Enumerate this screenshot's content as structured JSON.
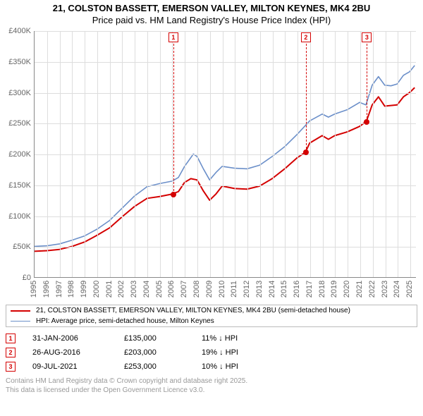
{
  "title": {
    "line1": "21, COLSTON BASSETT, EMERSON VALLEY, MILTON KEYNES, MK4 2BU",
    "line2": "Price paid vs. HM Land Registry's House Price Index (HPI)",
    "fontsize": 13
  },
  "chart": {
    "type": "line",
    "background_color": "#ffffff",
    "grid_color": "#dddddd",
    "axis_color": "#888888",
    "tick_label_color": "#666666",
    "tick_fontsize": 11,
    "xlim": [
      1995,
      2025.5
    ],
    "ylim": [
      0,
      400000
    ],
    "ytick_step": 50000,
    "yticks": [
      {
        "v": 0,
        "label": "£0"
      },
      {
        "v": 50000,
        "label": "£50K"
      },
      {
        "v": 100000,
        "label": "£100K"
      },
      {
        "v": 150000,
        "label": "£150K"
      },
      {
        "v": 200000,
        "label": "£200K"
      },
      {
        "v": 250000,
        "label": "£250K"
      },
      {
        "v": 300000,
        "label": "£300K"
      },
      {
        "v": 350000,
        "label": "£350K"
      },
      {
        "v": 400000,
        "label": "£400K"
      }
    ],
    "xticks": [
      1995,
      1996,
      1997,
      1998,
      1999,
      2000,
      2001,
      2002,
      2003,
      2004,
      2005,
      2006,
      2007,
      2008,
      2009,
      2010,
      2011,
      2012,
      2013,
      2014,
      2015,
      2016,
      2017,
      2018,
      2019,
      2020,
      2021,
      2022,
      2023,
      2024,
      2025
    ],
    "series": [
      {
        "name": "price_paid",
        "label": "21, COLSTON BASSETT, EMERSON VALLEY, MILTON KEYNES, MK4 2BU (semi-detached house)",
        "color": "#d40000",
        "line_width": 2,
        "points": [
          [
            1995,
            42000
          ],
          [
            1996,
            43000
          ],
          [
            1997,
            45000
          ],
          [
            1998,
            50000
          ],
          [
            1999,
            57000
          ],
          [
            2000,
            68000
          ],
          [
            2001,
            80000
          ],
          [
            2002,
            98000
          ],
          [
            2003,
            115000
          ],
          [
            2004,
            128000
          ],
          [
            2005,
            131000
          ],
          [
            2006,
            135000
          ],
          [
            2006.5,
            139000
          ],
          [
            2007,
            154000
          ],
          [
            2007.5,
            160000
          ],
          [
            2008,
            158000
          ],
          [
            2008.5,
            140000
          ],
          [
            2009,
            125000
          ],
          [
            2009.5,
            135000
          ],
          [
            2010,
            148000
          ],
          [
            2011,
            144000
          ],
          [
            2012,
            143000
          ],
          [
            2013,
            148000
          ],
          [
            2014,
            160000
          ],
          [
            2015,
            176000
          ],
          [
            2016,
            194000
          ],
          [
            2016.66,
            203000
          ],
          [
            2017,
            218000
          ],
          [
            2018,
            230000
          ],
          [
            2018.5,
            224000
          ],
          [
            2019,
            230000
          ],
          [
            2020,
            236000
          ],
          [
            2021,
            245000
          ],
          [
            2021.53,
            253000
          ],
          [
            2022,
            280000
          ],
          [
            2022.5,
            293000
          ],
          [
            2023,
            278000
          ],
          [
            2023.5,
            279000
          ],
          [
            2024,
            280000
          ],
          [
            2024.5,
            293000
          ],
          [
            2025,
            300000
          ],
          [
            2025.4,
            308000
          ]
        ]
      },
      {
        "name": "hpi",
        "label": "HPI: Average price, semi-detached house, Milton Keynes",
        "color": "#6b8fc9",
        "line_width": 1.6,
        "points": [
          [
            1995,
            50000
          ],
          [
            1996,
            51000
          ],
          [
            1997,
            54000
          ],
          [
            1998,
            60000
          ],
          [
            1999,
            67000
          ],
          [
            2000,
            78000
          ],
          [
            2001,
            92000
          ],
          [
            2002,
            112000
          ],
          [
            2003,
            132000
          ],
          [
            2004,
            147000
          ],
          [
            2005,
            152000
          ],
          [
            2006,
            156000
          ],
          [
            2006.5,
            162000
          ],
          [
            2007,
            180000
          ],
          [
            2007.7,
            200000
          ],
          [
            2008,
            196000
          ],
          [
            2008.5,
            176000
          ],
          [
            2009,
            158000
          ],
          [
            2009.5,
            170000
          ],
          [
            2010,
            180000
          ],
          [
            2011,
            177000
          ],
          [
            2012,
            176000
          ],
          [
            2013,
            182000
          ],
          [
            2014,
            196000
          ],
          [
            2015,
            212000
          ],
          [
            2016,
            232000
          ],
          [
            2017,
            254000
          ],
          [
            2018,
            265000
          ],
          [
            2018.5,
            260000
          ],
          [
            2019,
            265000
          ],
          [
            2020,
            272000
          ],
          [
            2021,
            284000
          ],
          [
            2021.5,
            280000
          ],
          [
            2022,
            312000
          ],
          [
            2022.5,
            326000
          ],
          [
            2023,
            312000
          ],
          [
            2023.5,
            311000
          ],
          [
            2024,
            314000
          ],
          [
            2024.5,
            328000
          ],
          [
            2025,
            334000
          ],
          [
            2025.4,
            344000
          ]
        ]
      }
    ],
    "markers": [
      {
        "n": "1",
        "x": 2006.08,
        "y": 135000,
        "color": "#d40000"
      },
      {
        "n": "2",
        "x": 2016.66,
        "y": 203000,
        "color": "#d40000"
      },
      {
        "n": "3",
        "x": 2021.53,
        "y": 253000,
        "color": "#d40000"
      }
    ]
  },
  "legend": {
    "border_color": "#bbbbbb",
    "fontsize": 10,
    "items": [
      {
        "color": "#d40000",
        "width": 2,
        "label": "21, COLSTON BASSETT, EMERSON VALLEY, MILTON KEYNES, MK4 2BU (semi-detached house)"
      },
      {
        "color": "#6b8fc9",
        "width": 1.5,
        "label": "HPI: Average price, semi-detached house, Milton Keynes"
      }
    ]
  },
  "annotations": {
    "fontsize": 11,
    "arrow": "↓",
    "suffix": "HPI",
    "rows": [
      {
        "n": "1",
        "date": "31-JAN-2006",
        "price": "£135,000",
        "delta": "11%",
        "color": "#d40000"
      },
      {
        "n": "2",
        "date": "26-AUG-2016",
        "price": "£203,000",
        "delta": "19%",
        "color": "#d40000"
      },
      {
        "n": "3",
        "date": "09-JUL-2021",
        "price": "£253,000",
        "delta": "10%",
        "color": "#d40000"
      }
    ]
  },
  "footer": {
    "line1": "Contains HM Land Registry data © Crown copyright and database right 2025.",
    "line2": "This data is licensed under the Open Government Licence v3.0.",
    "color": "#999999",
    "fontsize": 10
  }
}
